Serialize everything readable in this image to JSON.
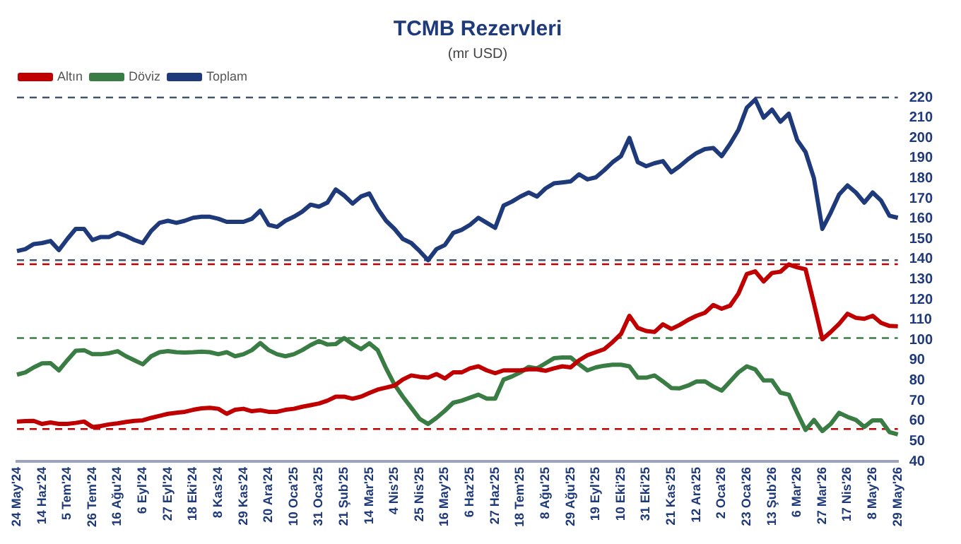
{
  "chart_data": {
    "type": "line",
    "title": "TCMB Rezervleri",
    "subtitle": "(mr USD)",
    "categories": [
      "24 May'24",
      null,
      null,
      "14 Haz'24",
      null,
      null,
      "5 Tem'24",
      null,
      null,
      "26 Tem'24",
      null,
      null,
      "16 Ağu'24",
      null,
      null,
      "6 Eyl'24",
      null,
      null,
      "27 Eyl'24",
      null,
      null,
      "18 Eki'24",
      null,
      null,
      "8 Kas'24",
      null,
      null,
      "29 Kas'24",
      null,
      null,
      "20 Ara'24",
      null,
      null,
      "10 Oca'25",
      null,
      null,
      "31 Oca'25",
      null,
      null,
      "21 Şub'25",
      null,
      null,
      "14 Mar'25",
      null,
      null,
      "4 Nis'25",
      null,
      null,
      "25 Nis'25",
      null,
      null,
      "16 May'25",
      null,
      null,
      "6 Haz'25",
      null,
      null,
      "27 Haz'25",
      null,
      null,
      "18 Tem'25",
      null,
      null,
      "8 Ağu'25",
      null,
      null,
      "29 Ağu'25",
      null,
      null,
      "19 Eyl'25",
      null,
      null,
      "10 Eki'25",
      null,
      null,
      "31 Eki'25",
      null,
      null,
      "21 Kas'25",
      null,
      null,
      "12 Ara'25",
      null,
      null,
      "2 Oca'26",
      null,
      null,
      "23 Oca'26",
      null,
      null,
      "13 Şub'26",
      null,
      null,
      "6 Mar'26",
      null,
      null,
      "27 Mar'26",
      null,
      null,
      "17 Nis'26",
      null,
      null,
      "8 May'26",
      null,
      null,
      "29 May'26"
    ],
    "series": [
      {
        "name": "Altın",
        "color": "#c00000",
        "values": [
          59.7,
          59.9,
          60,
          58.5,
          59.2,
          58.5,
          58.5,
          59,
          59.7,
          57,
          57.5,
          58.3,
          58.8,
          59.5,
          60,
          60.3,
          61.5,
          62.5,
          63.5,
          64,
          64.5,
          65.5,
          66.2,
          66.5,
          66,
          63.5,
          65.5,
          66,
          64.8,
          65.3,
          64.5,
          64.5,
          65.5,
          66,
          67,
          67.8,
          68.6,
          70,
          72,
          72,
          71,
          72,
          73.8,
          75.5,
          76.5,
          77.5,
          80.5,
          82.5,
          81.8,
          81.4,
          83.2,
          81,
          84,
          84,
          86,
          87,
          85,
          83.6,
          85,
          85,
          85,
          85.5,
          85.5,
          84.8,
          86,
          87,
          86.5,
          90,
          92.5,
          94,
          95.5,
          99,
          103,
          112,
          106,
          104.5,
          104,
          107.8,
          105.5,
          107.5,
          110,
          112,
          113.5,
          117.3,
          115.5,
          117,
          123,
          132.7,
          134,
          129,
          133.2,
          133.8,
          137.4,
          136,
          135,
          118,
          100.4,
          104,
          108,
          113,
          111,
          110.5,
          112,
          108.5,
          107,
          106.8
        ]
      },
      {
        "name": "Döviz",
        "color": "#3a7d44",
        "values": [
          82.9,
          84,
          86.5,
          88.5,
          88.6,
          85,
          90,
          94.7,
          95,
          93,
          93,
          93.5,
          94.5,
          92,
          90,
          88,
          92,
          94,
          94.5,
          94,
          93.8,
          94,
          94.3,
          94,
          93,
          94,
          92,
          93,
          95,
          98.5,
          95,
          93,
          92,
          93,
          95,
          97.5,
          99.5,
          97.8,
          98,
          101,
          98,
          95.5,
          98.4,
          95,
          86,
          78,
          72,
          66.5,
          61,
          58.5,
          61.5,
          65,
          69,
          70,
          71.5,
          73,
          71,
          71,
          80.4,
          82,
          84,
          86.7,
          86,
          88.5,
          91,
          91.4,
          91.4,
          88,
          85,
          86.5,
          87.3,
          87.8,
          87.8,
          87,
          81.4,
          81.4,
          82.5,
          79.5,
          76.3,
          76.1,
          77.5,
          79.5,
          79.6,
          77,
          75,
          79.5,
          84,
          87,
          85.5,
          80,
          80,
          74,
          73,
          64,
          55.5,
          60.5,
          55,
          58.5,
          64,
          62,
          60.5,
          57,
          60.3,
          60.3,
          54.5,
          53.3
        ]
      },
      {
        "name": "Toplam",
        "color": "#1f3a7a",
        "values": [
          144,
          145,
          147.5,
          148,
          149,
          144.5,
          150,
          155,
          155,
          149.5,
          151,
          151,
          153,
          151.5,
          149.5,
          148,
          154,
          158,
          159,
          158,
          159,
          160.5,
          161,
          161,
          160,
          158.5,
          158.5,
          158.5,
          160,
          164,
          157,
          156,
          159,
          161,
          163.5,
          167,
          166,
          168,
          174.5,
          171.5,
          167.5,
          171,
          172.5,
          165,
          159,
          155,
          150,
          148,
          144,
          139.5,
          145,
          147,
          153,
          154.5,
          157,
          160.5,
          158,
          155.5,
          166.5,
          168.5,
          171,
          173,
          171,
          175,
          177.5,
          178,
          178.5,
          182,
          179.5,
          180.5,
          184,
          188,
          191,
          200,
          188,
          186,
          187.5,
          188.5,
          183,
          186,
          189.5,
          192.5,
          194.5,
          195,
          191,
          197,
          204,
          215,
          219,
          210,
          214,
          208,
          212,
          199,
          193,
          180,
          155,
          163,
          172,
          176.5,
          173,
          168,
          173,
          169,
          161.5,
          160.5
        ]
      }
    ],
    "ylim": [
      40,
      220
    ],
    "yticks": [
      40,
      50,
      60,
      70,
      80,
      90,
      100,
      110,
      120,
      130,
      140,
      150,
      160,
      170,
      180,
      190,
      200,
      210,
      220
    ],
    "legend": "top left",
    "marker": "none",
    "ref_lines": [
      {
        "axis": "y",
        "value": 220,
        "color": "#44546a",
        "line_style": "dashed"
      },
      {
        "axis": "y",
        "value": 139.5,
        "color": "#44546a",
        "line_style": "dashed"
      },
      {
        "axis": "y",
        "value": 137.5,
        "color": "#c00000",
        "line_style": "dashed"
      },
      {
        "axis": "y",
        "value": 101,
        "color": "#3a7d44",
        "line_style": "dashed"
      },
      {
        "axis": "y",
        "value": 56,
        "color": "#c00000",
        "line_style": "dashed"
      }
    ]
  }
}
